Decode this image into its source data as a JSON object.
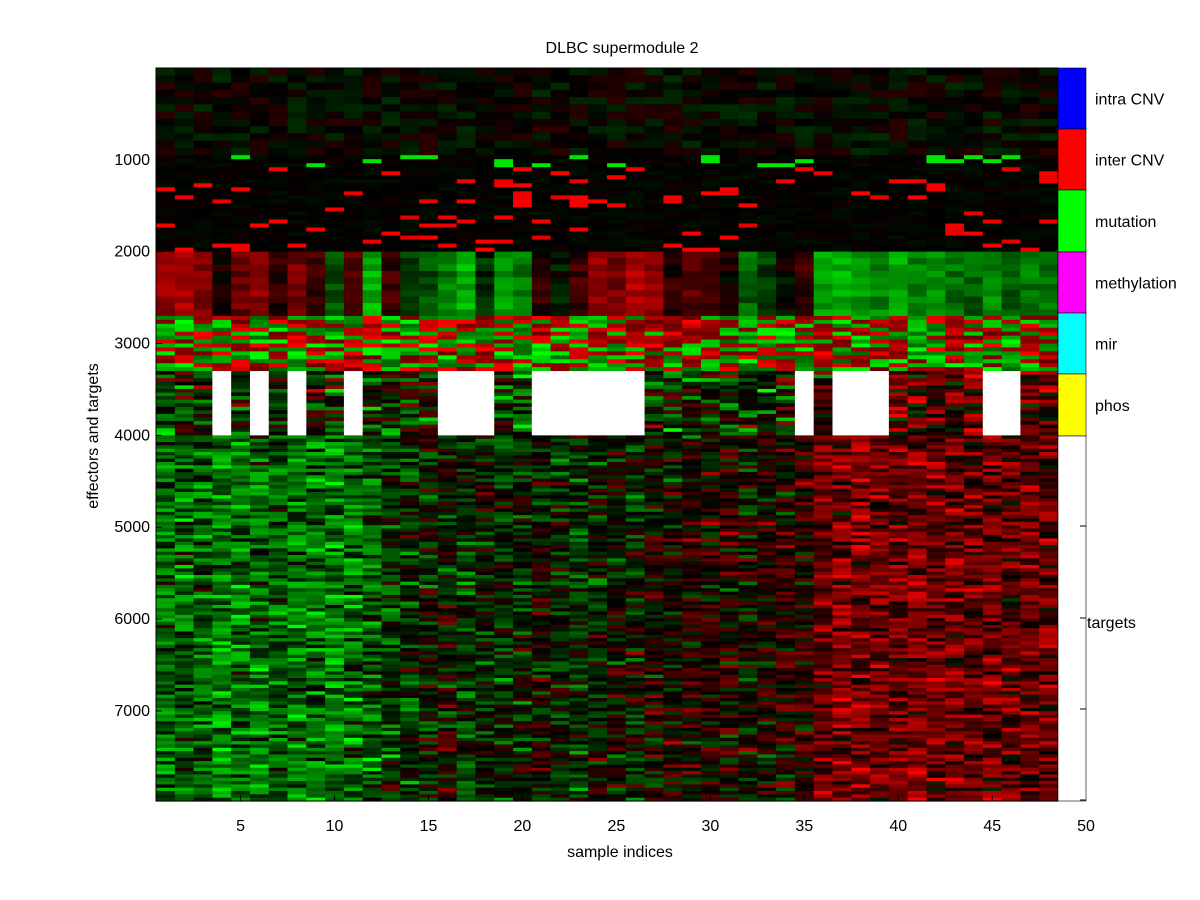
{
  "chart_data": {
    "type": "heatmap",
    "title": "DLBC supermodule 2",
    "xlabel": "sample indices",
    "ylabel": "effectors and targets",
    "xlim": [
      0.5,
      48.5
    ],
    "ylim": [
      1,
      7980
    ],
    "y_direction": "reversed",
    "x_ticks": [
      5,
      10,
      15,
      20,
      25,
      30,
      35,
      40,
      45,
      50
    ],
    "y_ticks": [
      1000,
      2000,
      3000,
      4000,
      5000,
      6000,
      7000
    ],
    "n_samples": 48,
    "colormap": {
      "high": "#ff0000",
      "mid": "#000000",
      "low": "#00ff00",
      "missing": "#ffffff"
    },
    "row_sections": [
      {
        "label": "intra CNV",
        "color": "#0000ff",
        "rows": [
          0,
          0
        ]
      },
      {
        "label": "inter CNV",
        "color": "#ff0000",
        "rows": [
          1,
          950
        ]
      },
      {
        "label": "mutation",
        "color": "#00ff00",
        "rows": [
          950,
          2000
        ]
      },
      {
        "label": "methylation",
        "color": "#ff00ff",
        "rows": [
          2000,
          2700
        ]
      },
      {
        "label": "mir",
        "color": "#00ffff",
        "rows": [
          2700,
          3300
        ]
      },
      {
        "label": "phos",
        "color": "#ffff00",
        "rows": [
          3300,
          4000
        ]
      },
      {
        "label": "targets",
        "color": "#ffffff",
        "rows": [
          4000,
          7980
        ]
      }
    ],
    "missing_phos_samples": [
      4,
      6,
      8,
      11,
      16,
      17,
      18,
      21,
      22,
      23,
      24,
      25,
      26,
      35,
      37,
      38,
      39,
      45,
      46
    ],
    "sample_trend_targets": [
      -0.6,
      -0.5,
      -0.5,
      -0.7,
      -0.6,
      -0.6,
      -0.5,
      -0.6,
      -0.6,
      -0.7,
      -0.6,
      -0.5,
      -0.3,
      -0.2,
      -0.1,
      0.0,
      -0.2,
      -0.1,
      -0.2,
      -0.1,
      0.0,
      -0.1,
      -0.2,
      -0.1,
      0.0,
      0.0,
      0.1,
      0.0,
      0.1,
      0.1,
      0.2,
      0.0,
      0.1,
      0.2,
      0.2,
      0.6,
      0.7,
      0.7,
      0.6,
      0.6,
      0.7,
      0.6,
      0.6,
      0.5,
      0.6,
      0.5,
      0.6,
      0.5
    ],
    "sample_trend_methylation": [
      0.8,
      0.9,
      0.6,
      0.1,
      0.5,
      0.7,
      0.2,
      0.6,
      0.3,
      -0.4,
      0.4,
      -0.9,
      0.3,
      -0.3,
      -0.4,
      -0.6,
      -0.9,
      -0.2,
      -0.8,
      -0.6,
      0.2,
      -0.1,
      0.3,
      0.8,
      0.6,
      0.9,
      0.7,
      0.2,
      0.4,
      0.3,
      0.1,
      -0.5,
      -0.3,
      0.0,
      0.3,
      -0.8,
      -0.9,
      -0.8,
      -0.7,
      -0.9,
      -0.7,
      -0.8,
      -0.6,
      -0.5,
      -0.7,
      -0.5,
      -0.6,
      -0.6
    ]
  }
}
